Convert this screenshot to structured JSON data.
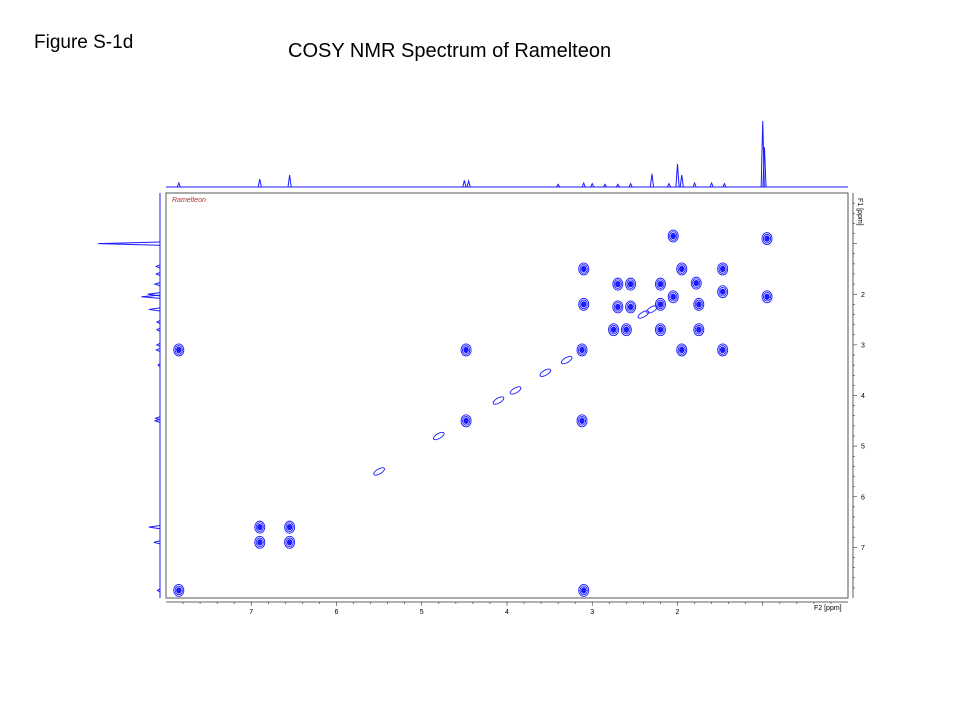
{
  "figure": {
    "label": "Figure S-1d",
    "title": "COSY NMR Spectrum of Ramelteon"
  },
  "chart_data": {
    "type": "scatter",
    "subtype": "2D COSY contour plot",
    "sample_label": "Ramelteon",
    "x_axis": {
      "unit_label": "F2 [ppm]",
      "range": [
        8.0,
        0.0
      ],
      "ticks": [
        "7",
        "6",
        "5",
        "4",
        "3",
        "2"
      ],
      "tick_values": [
        7,
        6,
        5,
        4,
        3,
        2
      ]
    },
    "y_axis": {
      "unit_label": "F1 [ppm]",
      "range": [
        0.0,
        8.0
      ],
      "ticks": [
        "2",
        "3",
        "4",
        "5",
        "6",
        "7"
      ],
      "tick_values": [
        2,
        3,
        4,
        5,
        6,
        7
      ]
    },
    "colors": {
      "contour": "#1a1aff",
      "frame": "#555555",
      "sample_label": "#b03030"
    },
    "cross_peaks": [
      {
        "x": 7.85,
        "y": 7.85
      },
      {
        "x": 7.85,
        "y": 3.1
      },
      {
        "x": 6.9,
        "y": 6.9
      },
      {
        "x": 6.9,
        "y": 6.6
      },
      {
        "x": 6.55,
        "y": 6.6
      },
      {
        "x": 6.55,
        "y": 6.9
      },
      {
        "x": 4.48,
        "y": 3.1
      },
      {
        "x": 4.48,
        "y": 4.5
      },
      {
        "x": 3.12,
        "y": 4.5
      },
      {
        "x": 3.12,
        "y": 3.1
      },
      {
        "x": 3.1,
        "y": 7.85
      },
      {
        "x": 3.1,
        "y": 2.2
      },
      {
        "x": 3.1,
        "y": 1.5
      },
      {
        "x": 2.7,
        "y": 1.8
      },
      {
        "x": 2.55,
        "y": 1.8
      },
      {
        "x": 2.7,
        "y": 2.25
      },
      {
        "x": 2.55,
        "y": 2.25
      },
      {
        "x": 2.75,
        "y": 2.7
      },
      {
        "x": 2.6,
        "y": 2.7
      },
      {
        "x": 2.2,
        "y": 1.8
      },
      {
        "x": 2.2,
        "y": 2.2
      },
      {
        "x": 2.2,
        "y": 2.7
      },
      {
        "x": 2.05,
        "y": 0.85
      },
      {
        "x": 2.05,
        "y": 2.05
      },
      {
        "x": 1.95,
        "y": 1.5
      },
      {
        "x": 1.95,
        "y": 3.1
      },
      {
        "x": 1.78,
        "y": 1.78
      },
      {
        "x": 1.75,
        "y": 2.2
      },
      {
        "x": 1.75,
        "y": 2.7
      },
      {
        "x": 1.47,
        "y": 1.5
      },
      {
        "x": 1.47,
        "y": 1.95
      },
      {
        "x": 1.47,
        "y": 3.1
      },
      {
        "x": 0.95,
        "y": 0.9
      },
      {
        "x": 0.95,
        "y": 2.05
      }
    ],
    "diagonal_peaks": [
      {
        "x": 5.5,
        "y": 5.5
      },
      {
        "x": 4.8,
        "y": 4.8
      },
      {
        "x": 4.1,
        "y": 4.1
      },
      {
        "x": 3.9,
        "y": 3.9
      },
      {
        "x": 3.55,
        "y": 3.55
      },
      {
        "x": 3.3,
        "y": 3.3
      },
      {
        "x": 2.4,
        "y": 2.4
      },
      {
        "x": 2.3,
        "y": 2.3
      }
    ],
    "f2_projection_peaks": [
      {
        "ppm": 7.85,
        "intensity": 0.06
      },
      {
        "ppm": 6.9,
        "intensity": 0.12
      },
      {
        "ppm": 6.55,
        "intensity": 0.18
      },
      {
        "ppm": 4.5,
        "intensity": 0.1
      },
      {
        "ppm": 4.45,
        "intensity": 0.09
      },
      {
        "ppm": 3.4,
        "intensity": 0.04
      },
      {
        "ppm": 3.1,
        "intensity": 0.06
      },
      {
        "ppm": 3.0,
        "intensity": 0.05
      },
      {
        "ppm": 2.85,
        "intensity": 0.04
      },
      {
        "ppm": 2.7,
        "intensity": 0.04
      },
      {
        "ppm": 2.55,
        "intensity": 0.05
      },
      {
        "ppm": 2.3,
        "intensity": 0.2
      },
      {
        "ppm": 2.1,
        "intensity": 0.05
      },
      {
        "ppm": 2.0,
        "intensity": 0.35
      },
      {
        "ppm": 1.95,
        "intensity": 0.18
      },
      {
        "ppm": 1.8,
        "intensity": 0.06
      },
      {
        "ppm": 1.6,
        "intensity": 0.06
      },
      {
        "ppm": 1.45,
        "intensity": 0.05
      },
      {
        "ppm": 1.0,
        "intensity": 1.0
      },
      {
        "ppm": 0.98,
        "intensity": 0.6
      }
    ],
    "f1_projection_peaks": [
      {
        "ppm": 1.0,
        "intensity": 1.0
      },
      {
        "ppm": 1.45,
        "intensity": 0.06
      },
      {
        "ppm": 1.6,
        "intensity": 0.06
      },
      {
        "ppm": 1.8,
        "intensity": 0.08
      },
      {
        "ppm": 2.0,
        "intensity": 0.2
      },
      {
        "ppm": 2.05,
        "intensity": 0.3
      },
      {
        "ppm": 2.3,
        "intensity": 0.18
      },
      {
        "ppm": 2.55,
        "intensity": 0.05
      },
      {
        "ppm": 2.7,
        "intensity": 0.05
      },
      {
        "ppm": 3.0,
        "intensity": 0.05
      },
      {
        "ppm": 3.1,
        "intensity": 0.06
      },
      {
        "ppm": 3.4,
        "intensity": 0.03
      },
      {
        "ppm": 4.45,
        "intensity": 0.07
      },
      {
        "ppm": 4.5,
        "intensity": 0.08
      },
      {
        "ppm": 6.6,
        "intensity": 0.18
      },
      {
        "ppm": 6.9,
        "intensity": 0.1
      },
      {
        "ppm": 7.85,
        "intensity": 0.04
      }
    ]
  }
}
